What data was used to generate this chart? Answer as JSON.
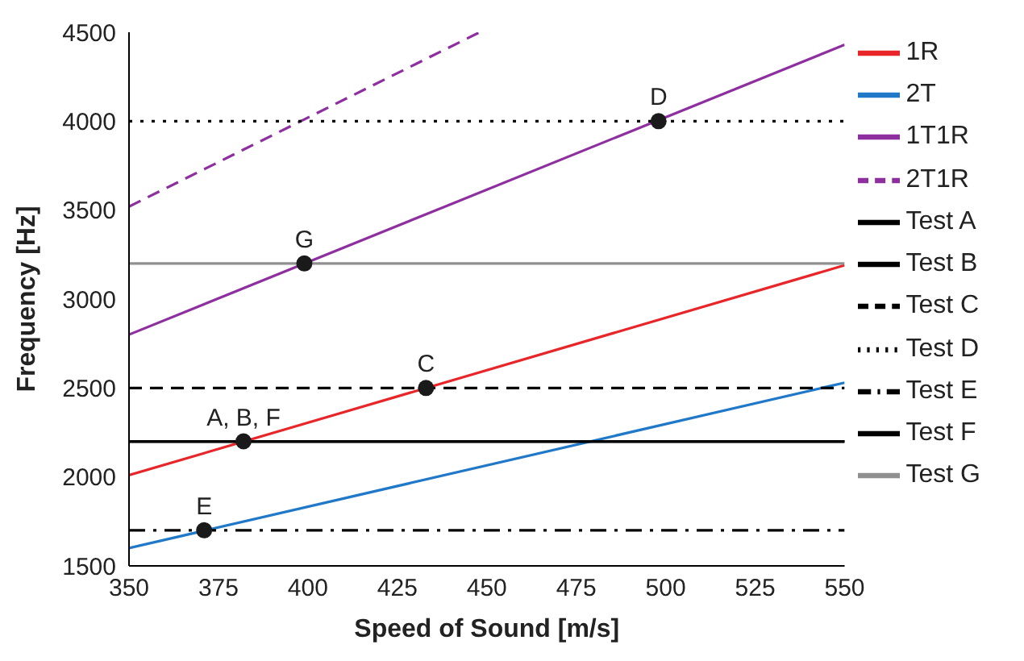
{
  "chart_data": {
    "type": "line",
    "xlabel": "Speed of Sound [m/s]",
    "ylabel": "Frequency [Hz]",
    "xlim": [
      350,
      550
    ],
    "xticks": [
      350,
      375,
      400,
      425,
      450,
      475,
      500,
      525,
      550
    ],
    "ylim": [
      1500,
      4500
    ],
    "yticks": [
      1500,
      2000,
      2500,
      3000,
      3500,
      4000,
      4500
    ],
    "grid": false,
    "legend": "right",
    "marker": "none",
    "series": [
      {
        "name": "1R",
        "color": "#e8262a",
        "x": [
          350,
          550
        ],
        "values": [
          2010,
          3190
        ],
        "line_style": "solid"
      },
      {
        "name": "2T",
        "color": "#1f78c8",
        "x": [
          350,
          550
        ],
        "values": [
          1600,
          2530
        ],
        "line_style": "solid"
      },
      {
        "name": "1T1R",
        "color": "#8e2f9f",
        "x": [
          350,
          550
        ],
        "values": [
          2800,
          4430
        ],
        "line_style": "solid"
      },
      {
        "name": "2T1R",
        "color": "#8e2f9f",
        "x": [
          350,
          448
        ],
        "values": [
          3520,
          4500
        ],
        "line_style": "dashed"
      },
      {
        "name": "Test A",
        "color": "#000000",
        "x": [
          350,
          550
        ],
        "values": [
          2200,
          2200
        ],
        "line_style": "solid"
      },
      {
        "name": "Test B",
        "color": "#000000",
        "x": [
          350,
          550
        ],
        "values": [
          2200,
          2200
        ],
        "line_style": "solid"
      },
      {
        "name": "Test C",
        "color": "#000000",
        "x": [
          350,
          550
        ],
        "values": [
          2500,
          2500
        ],
        "line_style": "dashed"
      },
      {
        "name": "Test D",
        "color": "#000000",
        "x": [
          350,
          550
        ],
        "values": [
          4000,
          4000
        ],
        "line_style": "dotted"
      },
      {
        "name": "Test E",
        "color": "#000000",
        "x": [
          350,
          550
        ],
        "values": [
          1700,
          1700
        ],
        "line_style": "dashdot"
      },
      {
        "name": "Test F",
        "color": "#000000",
        "x": [
          350,
          550
        ],
        "values": [
          2200,
          2200
        ],
        "line_style": "solid"
      },
      {
        "name": "Test G",
        "color": "#909090",
        "x": [
          350,
          550
        ],
        "values": [
          3200,
          3200
        ],
        "line_style": "solid"
      },
      {
        "type": "scatter",
        "color": "#1a1a1a",
        "marker": "circle",
        "x": [
          382,
          433,
          498,
          371,
          399
        ],
        "values": [
          2200,
          2500,
          4000,
          1700,
          3200
        ]
      }
    ],
    "annotations": [
      {
        "text": "A, B, F",
        "x": 382,
        "y": 2200
      },
      {
        "text": "C",
        "x": 433,
        "y": 2500
      },
      {
        "text": "D",
        "x": 498,
        "y": 4000
      },
      {
        "text": "E",
        "x": 371,
        "y": 1700
      },
      {
        "text": "G",
        "x": 399,
        "y": 3200
      }
    ]
  }
}
